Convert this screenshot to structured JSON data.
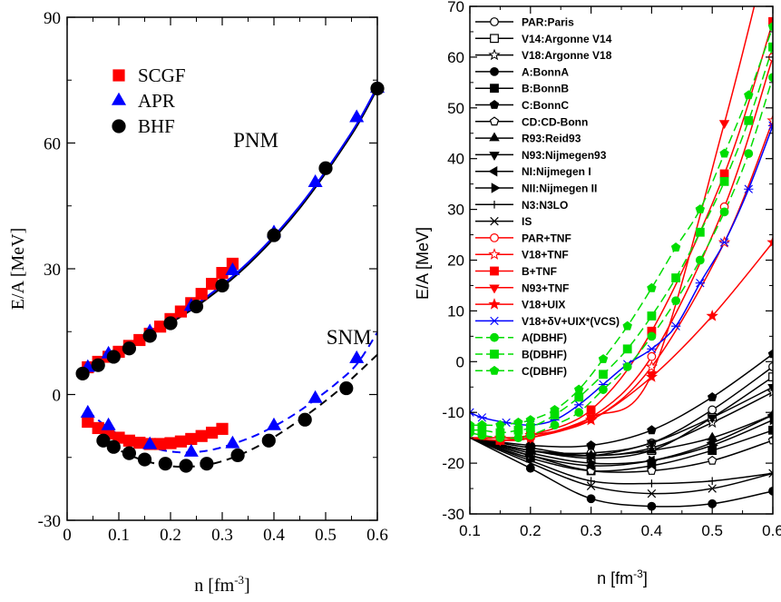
{
  "chart_data": [
    {
      "type": "scatter",
      "xlabel": "n [fm",
      "xlabel_sup": "-3",
      "xlabel_suffix": "]",
      "ylabel": "E/A [MeV]",
      "xlim": [
        0,
        0.6
      ],
      "ylim": [
        -30,
        90
      ],
      "xticks": [
        0,
        0.1,
        0.2,
        0.3,
        0.4,
        0.5,
        0.6
      ],
      "xtick_labels": [
        "0",
        "0.1",
        "0.2",
        "0.3",
        "0.4",
        "0.5",
        "0.6"
      ],
      "yticks": [
        -30,
        0,
        30,
        60,
        90
      ],
      "ytick_labels": [
        "-30",
        "0",
        "30",
        "60",
        "90"
      ],
      "legend_position": "top-left",
      "annotations": [
        {
          "text": "PNM",
          "x": 0.365,
          "y": 59
        },
        {
          "text": "SNM",
          "x": 0.545,
          "y": 12
        }
      ],
      "series": [
        {
          "name": "SCGF",
          "marker": "square",
          "color": "#ff0000",
          "pnm": {
            "x": [
              0.04,
              0.06,
              0.08,
              0.1,
              0.12,
              0.14,
              0.16,
              0.18,
              0.2,
              0.22,
              0.24,
              0.26,
              0.28,
              0.3,
              0.32
            ],
            "y": [
              6.5,
              7.8,
              9.0,
              10.2,
              11.6,
              13.0,
              14.5,
              16.2,
              18.0,
              19.8,
              21.8,
              24.0,
              26.4,
              29.0,
              31.2
            ]
          },
          "snm": {
            "x": [
              0.04,
              0.06,
              0.08,
              0.1,
              0.12,
              0.14,
              0.16,
              0.18,
              0.2,
              0.22,
              0.24,
              0.26,
              0.28,
              0.3
            ],
            "y": [
              -6.5,
              -8.0,
              -9.3,
              -10.3,
              -11.0,
              -11.5,
              -11.8,
              -11.8,
              -11.6,
              -11.2,
              -10.6,
              -9.9,
              -9.1,
              -8.2
            ]
          }
        },
        {
          "name": "APR",
          "marker": "triangle",
          "color": "#0000ff",
          "pnm": {
            "x": [
              0.04,
              0.08,
              0.16,
              0.24,
              0.32,
              0.4,
              0.48,
              0.56,
              0.6
            ],
            "y": [
              6.4,
              9.6,
              14.9,
              21.0,
              29.5,
              38.5,
              50.5,
              66.0,
              73.0
            ]
          },
          "snm": {
            "x": [
              0.04,
              0.08,
              0.16,
              0.24,
              0.32,
              0.4,
              0.48,
              0.56
            ],
            "y": [
              -4.5,
              -7.5,
              -12.0,
              -13.8,
              -11.8,
              -7.5,
              -1.0,
              8.5
            ]
          },
          "snm_curve": {
            "x": [
              0.04,
              0.08,
              0.12,
              0.16,
              0.2,
              0.24,
              0.28,
              0.32,
              0.36,
              0.4,
              0.44,
              0.48,
              0.52,
              0.56,
              0.6
            ],
            "y": [
              -4.0,
              -8.0,
              -10.8,
              -12.5,
              -13.6,
              -13.8,
              -13.2,
              -11.8,
              -10.0,
              -7.6,
              -4.7,
              -1.2,
              2.6,
              7.2,
              14.8
            ]
          }
        },
        {
          "name": "BHF",
          "marker": "circle",
          "color": "#000000",
          "pnm": {
            "x": [
              0.03,
              0.06,
              0.09,
              0.12,
              0.16,
              0.2,
              0.25,
              0.3,
              0.4,
              0.5,
              0.6
            ],
            "y": [
              5.0,
              7.0,
              9.0,
              11.0,
              14.0,
              17.0,
              21.0,
              26.0,
              38.0,
              54.0,
              73.0
            ]
          },
          "snm": {
            "x": [
              0.07,
              0.09,
              0.12,
              0.15,
              0.19,
              0.23,
              0.27,
              0.33,
              0.39,
              0.46,
              0.54
            ],
            "y": [
              -11.0,
              -12.5,
              -14.0,
              -15.5,
              -16.5,
              -17.0,
              -16.5,
              -14.5,
              -11.0,
              -6.0,
              1.5
            ]
          },
          "snm_curve": {
            "x": [
              0.06,
              0.09,
              0.12,
              0.15,
              0.18,
              0.21,
              0.24,
              0.27,
              0.3,
              0.33,
              0.36,
              0.39,
              0.42,
              0.46,
              0.5,
              0.54,
              0.58,
              0.6
            ],
            "y": [
              -10.0,
              -12.5,
              -14.4,
              -15.8,
              -16.7,
              -17.2,
              -17.2,
              -16.8,
              -15.9,
              -14.6,
              -12.9,
              -10.9,
              -8.6,
              -5.2,
              -1.5,
              2.6,
              7.2,
              9.5
            ]
          }
        }
      ],
      "pnm_curves": [
        {
          "color": "#000000",
          "x": [
            0.03,
            0.08,
            0.15,
            0.25,
            0.35,
            0.45,
            0.55,
            0.6
          ],
          "y": [
            5.0,
            8.5,
            13.5,
            21.0,
            31.0,
            44.5,
            62.0,
            73.0
          ]
        },
        {
          "color": "#0000ff",
          "x": [
            0.03,
            0.08,
            0.15,
            0.25,
            0.35,
            0.45,
            0.55,
            0.6
          ],
          "y": [
            5.2,
            8.7,
            13.8,
            21.5,
            31.5,
            45.0,
            62.5,
            73.5
          ]
        }
      ]
    },
    {
      "type": "line",
      "xlabel": "n [fm",
      "xlabel_sup": "-3",
      "xlabel_suffix": "]",
      "ylabel": "E/A [MeV]",
      "xlim": [
        0.1,
        0.6
      ],
      "ylim": [
        -30,
        70
      ],
      "xticks": [
        0.1,
        0.2,
        0.3,
        0.4,
        0.5,
        0.6
      ],
      "xtick_labels": [
        "0.1",
        "0.2",
        "0.3",
        "0.4",
        "0.5",
        "0.6"
      ],
      "yticks": [
        -30,
        -20,
        -10,
        0,
        10,
        20,
        30,
        40,
        50,
        60,
        70
      ],
      "ytick_labels": [
        "-30",
        "-20",
        "-10",
        "0",
        "10",
        "20",
        "30",
        "40",
        "50",
        "60",
        "70"
      ],
      "legend_position": "top-left",
      "x": [
        0.1,
        0.2,
        0.3,
        0.4,
        0.5,
        0.6
      ],
      "series": [
        {
          "name": "PAR:Paris",
          "color": "#000000",
          "marker": "circle-open",
          "y": [
            -15.0,
            -17.5,
            -18.0,
            -16.0,
            -9.5,
            -1.0
          ]
        },
        {
          "name": "V14:Argonne V14",
          "color": "#000000",
          "marker": "square-open",
          "y": [
            -15.0,
            -17.5,
            -19.0,
            -17.5,
            -11.0,
            -3.0
          ]
        },
        {
          "name": "V18:Argonne V18",
          "color": "#000000",
          "marker": "star-open",
          "y": [
            -15.0,
            -17.0,
            -18.5,
            -17.0,
            -12.0,
            -6.0
          ]
        },
        {
          "name": "A:BonnA",
          "color": "#000000",
          "marker": "circle",
          "y": [
            -15.0,
            -21.0,
            -27.0,
            -28.5,
            -28.0,
            -25.5
          ]
        },
        {
          "name": "B:BonnB",
          "color": "#000000",
          "marker": "square",
          "y": [
            -15.0,
            -19.0,
            -21.5,
            -20.5,
            -17.5,
            -13.5
          ]
        },
        {
          "name": "C:BonnC",
          "color": "#000000",
          "marker": "pentagon",
          "y": [
            -15.0,
            -16.5,
            -16.5,
            -13.5,
            -7.0,
            1.5
          ]
        },
        {
          "name": "CD:CD-Bonn",
          "color": "#000000",
          "marker": "pentagon-open",
          "y": [
            -15.0,
            -18.5,
            -21.5,
            -21.5,
            -19.5,
            -15.5
          ]
        },
        {
          "name": "R93:Reid93",
          "color": "#000000",
          "marker": "triangle",
          "y": [
            -15.0,
            -17.5,
            -18.5,
            -17.5,
            -15.0,
            -10.5
          ]
        },
        {
          "name": "N93:Nijmegen93",
          "color": "#000000",
          "marker": "triangle-down",
          "y": [
            -15.0,
            -17.5,
            -18.5,
            -16.0,
            -11.0,
            -5.0
          ]
        },
        {
          "name": "NI:Nijmegen I",
          "color": "#000000",
          "marker": "triangle-left",
          "y": [
            -15.0,
            -18.5,
            -20.5,
            -19.5,
            -16.0,
            -10.5
          ]
        },
        {
          "name": "NII:Nijmegen II",
          "color": "#000000",
          "marker": "triangle-right",
          "y": [
            -15.0,
            -18.0,
            -20.0,
            -19.5,
            -16.5,
            -11.5
          ]
        },
        {
          "name": "N3:N3LO",
          "color": "#000000",
          "marker": "plus",
          "y": [
            -15.0,
            -19.5,
            -23.5,
            -24.0,
            -23.5,
            -22.0
          ]
        },
        {
          "name": "IS",
          "color": "#000000",
          "marker": "cross",
          "y": [
            -15.0,
            -20.0,
            -24.5,
            -26.0,
            -25.0,
            -22.0
          ]
        },
        {
          "name": "PAR+TNF",
          "color": "#ff0000",
          "marker": "circle-open",
          "x": [
            0.1,
            0.15,
            0.2,
            0.3,
            0.4,
            0.52,
            0.6
          ],
          "y": [
            -15.0,
            -15.5,
            -15.0,
            -11.0,
            1.0,
            30.5,
            60.0
          ]
        },
        {
          "name": "V18+TNF",
          "color": "#ff0000",
          "marker": "star-open",
          "x": [
            0.1,
            0.15,
            0.2,
            0.3,
            0.4,
            0.52,
            0.6
          ],
          "y": [
            -15.0,
            -15.0,
            -14.5,
            -11.5,
            -1.0,
            23.5,
            47.5
          ]
        },
        {
          "name": "B+TNF",
          "color": "#ff0000",
          "marker": "square",
          "x": [
            0.1,
            0.15,
            0.2,
            0.3,
            0.4,
            0.52,
            0.6
          ],
          "y": [
            -15.0,
            -15.5,
            -14.5,
            -9.5,
            6.0,
            37.0,
            67.0
          ]
        },
        {
          "name": "N93+TNF",
          "color": "#ff0000",
          "marker": "triangle-down",
          "x": [
            0.1,
            0.15,
            0.2,
            0.3,
            0.4,
            0.52,
            0.6
          ],
          "y": [
            -15.0,
            -15.5,
            -15.0,
            -11.0,
            -2.5,
            47.0,
            85.0
          ]
        },
        {
          "name": "V18+UIX",
          "color": "#ff0000",
          "marker": "star",
          "x": [
            0.1,
            0.15,
            0.2,
            0.3,
            0.4,
            0.5,
            0.6
          ],
          "y": [
            -15.0,
            -15.0,
            -15.0,
            -11.5,
            -3.0,
            9.0,
            23.5
          ]
        },
        {
          "name": "V18+δV+UIX*(VCS)",
          "color": "#0000ff",
          "marker": "asterisk",
          "x": [
            0.1,
            0.12,
            0.16,
            0.2,
            0.24,
            0.28,
            0.32,
            0.36,
            0.4,
            0.44,
            0.48,
            0.52,
            0.56,
            0.6
          ],
          "y": [
            -10.0,
            -11.0,
            -12.0,
            -12.5,
            -11.5,
            -8.5,
            -4.5,
            -0.5,
            2.5,
            7.0,
            15.5,
            23.5,
            34.0,
            46.5
          ]
        },
        {
          "name": "A(DBHF)",
          "color": "#00dd00",
          "marker": "circle",
          "x": [
            0.1,
            0.12,
            0.15,
            0.18,
            0.2,
            0.24,
            0.28,
            0.32,
            0.36,
            0.4,
            0.44,
            0.48,
            0.52,
            0.56,
            0.6
          ],
          "y": [
            -14.0,
            -14.5,
            -15.0,
            -15.0,
            -14.5,
            -12.5,
            -10.0,
            -5.5,
            -1.0,
            5.0,
            12.0,
            20.0,
            29.5,
            41.0,
            56.0
          ]
        },
        {
          "name": "B(DBHF)",
          "color": "#00dd00",
          "marker": "square",
          "x": [
            0.1,
            0.12,
            0.15,
            0.18,
            0.2,
            0.24,
            0.28,
            0.32,
            0.36,
            0.4,
            0.44,
            0.48,
            0.52,
            0.56,
            0.6
          ],
          "y": [
            -13.5,
            -13.5,
            -14.0,
            -13.5,
            -13.0,
            -10.5,
            -7.0,
            -2.5,
            2.5,
            9.0,
            16.5,
            25.5,
            35.5,
            47.5,
            62.0
          ]
        },
        {
          "name": "C(DBHF)",
          "color": "#00dd00",
          "marker": "pentagon",
          "x": [
            0.1,
            0.12,
            0.15,
            0.18,
            0.2,
            0.24,
            0.28,
            0.32,
            0.36,
            0.4,
            0.44,
            0.48,
            0.52,
            0.56,
            0.6
          ],
          "y": [
            -12.5,
            -12.5,
            -12.5,
            -12.0,
            -11.5,
            -9.5,
            -5.5,
            0.5,
            7.0,
            14.5,
            22.5,
            30.0,
            41.0,
            52.5,
            66.0
          ]
        }
      ]
    }
  ]
}
